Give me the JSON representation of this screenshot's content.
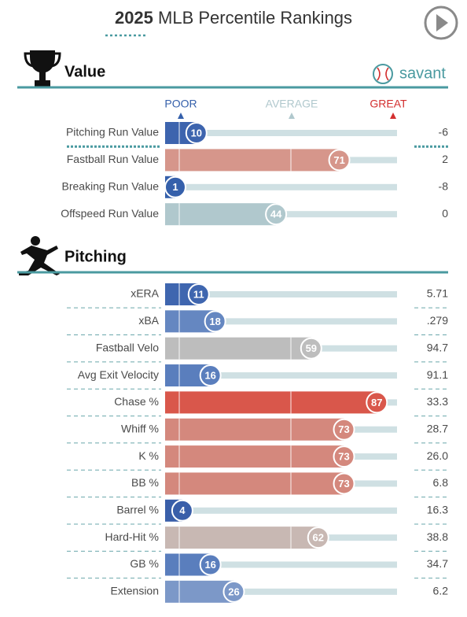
{
  "header": {
    "year": "2025",
    "title": "MLB Percentile Rankings"
  },
  "logo": "savant",
  "scale": {
    "poor": "POOR",
    "average": "AVERAGE",
    "great": "GREAT"
  },
  "sections": [
    {
      "title": "Value",
      "rows": [
        {
          "label": "Pitching Run Value",
          "percentile": 10,
          "value": "-6",
          "color": "#3d64ae"
        },
        {
          "label": "Fastball Run Value",
          "percentile": 71,
          "value": "2",
          "color": "#d6968b"
        },
        {
          "label": "Breaking Run Value",
          "percentile": 1,
          "value": "-8",
          "color": "#3560ab"
        },
        {
          "label": "Offspeed Run Value",
          "percentile": 44,
          "value": "0",
          "color": "#b0c8cd"
        }
      ]
    },
    {
      "title": "Pitching",
      "rows": [
        {
          "label": "xERA",
          "percentile": 11,
          "value": "5.71",
          "color": "#3f66af"
        },
        {
          "label": "xBA",
          "percentile": 18,
          "value": ".279",
          "color": "#6587c1"
        },
        {
          "label": "Fastball Velo",
          "percentile": 59,
          "value": "94.7",
          "color": "#bdbdbd"
        },
        {
          "label": "Avg Exit Velocity",
          "percentile": 16,
          "value": "91.1",
          "color": "#5a7ebd"
        },
        {
          "label": "Chase %",
          "percentile": 87,
          "value": "33.3",
          "color": "#d9574b"
        },
        {
          "label": "Whiff %",
          "percentile": 73,
          "value": "28.7",
          "color": "#d4887d"
        },
        {
          "label": "K %",
          "percentile": 73,
          "value": "26.0",
          "color": "#d4887d"
        },
        {
          "label": "BB %",
          "percentile": 73,
          "value": "6.8",
          "color": "#d4887d"
        },
        {
          "label": "Barrel %",
          "percentile": 4,
          "value": "16.3",
          "color": "#3a5fa9"
        },
        {
          "label": "Hard-Hit %",
          "percentile": 62,
          "value": "38.8",
          "color": "#c8b8b3"
        },
        {
          "label": "GB %",
          "percentile": 16,
          "value": "34.7",
          "color": "#5a7ebd"
        },
        {
          "label": "Extension",
          "percentile": 26,
          "value": "6.2",
          "color": "#7c98c8"
        }
      ]
    }
  ]
}
